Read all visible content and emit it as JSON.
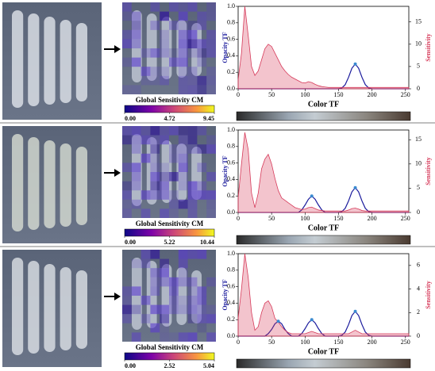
{
  "chart_data": [
    {
      "type": "line",
      "colorbar": {
        "title": "Global Sensitivity CM",
        "lim": [
          0,
          9.45
        ],
        "ticks": [
          {
            "value": 0,
            "label": "0.00"
          },
          4.72,
          9.45
        ]
      },
      "x_label": "Color TF",
      "y_label": "Opacity TF",
      "y2_label": "Sensitivity",
      "x": [
        0,
        5,
        10,
        15,
        20,
        25,
        30,
        35,
        40,
        45,
        50,
        55,
        60,
        65,
        70,
        75,
        80,
        85,
        90,
        95,
        100,
        105,
        110,
        115,
        120,
        125,
        130,
        135,
        140,
        145,
        150,
        155,
        160,
        165,
        170,
        175,
        180,
        185,
        190,
        195,
        200,
        205,
        210,
        215,
        220,
        225,
        230,
        235,
        240,
        245,
        250,
        255
      ],
      "xlim": [
        0,
        255
      ],
      "xticks": [
        0,
        50,
        100,
        150,
        200,
        250
      ],
      "ylim": [
        0,
        1
      ],
      "yticks": [
        {
          "value": 0,
          "label": "0.0"
        },
        0.2,
        0.4,
        0.6,
        0.8,
        {
          "value": 1,
          "label": "1.0"
        }
      ],
      "y2lim": [
        0,
        18.5
      ],
      "y2ticks": [
        0,
        5,
        10,
        15
      ],
      "series": [
        {
          "name": "Opacity TF",
          "color": "#1a1a9c",
          "values": [
            0,
            0,
            0,
            0,
            0,
            0,
            0,
            0,
            0,
            0,
            0,
            0,
            0,
            0,
            0,
            0,
            0,
            0,
            0,
            0,
            0,
            0,
            0,
            0,
            0,
            0,
            0,
            0,
            0,
            0,
            0,
            0.01,
            0.05,
            0.14,
            0.25,
            0.3,
            0.25,
            0.14,
            0.05,
            0.01,
            0,
            0,
            0,
            0,
            0,
            0,
            0,
            0,
            0,
            0,
            0,
            0
          ]
        },
        {
          "name": "Sensitivity",
          "color": "#d63a5a",
          "axis": "y2",
          "values": [
            2,
            8,
            18.5,
            12,
            5,
            3,
            4,
            6.5,
            9,
            10,
            9.5,
            8,
            6.5,
            5,
            4,
            3.2,
            2.6,
            2.2,
            1.8,
            1.4,
            1.3,
            1.6,
            1.4,
            1,
            0.7,
            0.5,
            0.4,
            0.3,
            0.3,
            0.3,
            0.3,
            0.3,
            0.3,
            0.3,
            0.3,
            0.3,
            0.3,
            0.3,
            0.3,
            0.3,
            0.3,
            0.3,
            0.3,
            0.3,
            0.3,
            0.3,
            0.3,
            0.3,
            0.3,
            0.3,
            0.3,
            0.3
          ]
        }
      ],
      "control_points": {
        "x": [
          175
        ],
        "values": [
          0.3
        ]
      }
    },
    {
      "type": "line",
      "colorbar": {
        "title": "Global Sensitivity CM",
        "lim": [
          0,
          10.44
        ],
        "ticks": [
          {
            "value": 0,
            "label": "0.00"
          },
          5.22,
          10.44
        ]
      },
      "x_label": "Color TF",
      "y_label": "Opacity TF",
      "y2_label": "Sensitivity",
      "x": [
        0,
        5,
        10,
        15,
        20,
        25,
        30,
        35,
        40,
        45,
        50,
        55,
        60,
        65,
        70,
        75,
        80,
        85,
        90,
        95,
        100,
        105,
        110,
        115,
        120,
        125,
        130,
        135,
        140,
        145,
        150,
        155,
        160,
        165,
        170,
        175,
        180,
        185,
        190,
        195,
        200,
        205,
        210,
        215,
        220,
        225,
        230,
        235,
        240,
        245,
        250,
        255
      ],
      "xlim": [
        0,
        255
      ],
      "xticks": [
        0,
        50,
        100,
        150,
        200,
        250
      ],
      "ylim": [
        0,
        1
      ],
      "yticks": [
        {
          "value": 0,
          "label": "0.0"
        },
        0.2,
        0.4,
        0.6,
        0.8,
        {
          "value": 1,
          "label": "1.0"
        }
      ],
      "y2lim": [
        0,
        17
      ],
      "y2ticks": [
        0,
        5,
        10,
        15
      ],
      "series": [
        {
          "name": "Opacity TF",
          "color": "#1a1a9c",
          "values": [
            0,
            0,
            0,
            0,
            0,
            0,
            0,
            0,
            0,
            0,
            0,
            0,
            0,
            0,
            0,
            0,
            0,
            0,
            0,
            0.03,
            0.09,
            0.16,
            0.2,
            0.16,
            0.09,
            0.03,
            0,
            0,
            0,
            0,
            0,
            0.01,
            0.05,
            0.14,
            0.25,
            0.3,
            0.25,
            0.14,
            0.05,
            0.01,
            0,
            0,
            0,
            0,
            0,
            0,
            0,
            0,
            0,
            0,
            0,
            0
          ]
        },
        {
          "name": "Sensitivity",
          "color": "#d63a5a",
          "axis": "y2",
          "values": [
            3,
            10,
            16.5,
            13,
            4,
            1,
            4,
            9,
            11,
            12,
            10,
            7,
            4.5,
            3,
            2.5,
            2,
            1.5,
            1,
            0.8,
            0.6,
            0.7,
            1,
            1.1,
            0.8,
            0.5,
            0.4,
            0.3,
            0.3,
            0.3,
            0.3,
            0.3,
            0.3,
            0.3,
            0.5,
            0.8,
            0.9,
            0.7,
            0.4,
            0.3,
            0.3,
            0.3,
            0.3,
            0.3,
            0.3,
            0.3,
            0.3,
            0.3,
            0.3,
            0.3,
            0.3,
            0.3,
            0.3
          ]
        }
      ],
      "control_points": {
        "x": [
          110,
          175
        ],
        "values": [
          0.2,
          0.3
        ]
      }
    },
    {
      "type": "line",
      "colorbar": {
        "title": "Global Sensitivity CM",
        "lim": [
          0,
          5.04
        ],
        "ticks": [
          {
            "value": 0,
            "label": "0.00"
          },
          2.52,
          5.04
        ]
      },
      "x_label": "Color TF",
      "y_label": "Opacity TF",
      "y2_label": "Sensitivity",
      "x": [
        0,
        5,
        10,
        15,
        20,
        25,
        30,
        35,
        40,
        45,
        50,
        55,
        60,
        65,
        70,
        75,
        80,
        85,
        90,
        95,
        100,
        105,
        110,
        115,
        120,
        125,
        130,
        135,
        140,
        145,
        150,
        155,
        160,
        165,
        170,
        175,
        180,
        185,
        190,
        195,
        200,
        205,
        210,
        215,
        220,
        225,
        230,
        235,
        240,
        245,
        250,
        255
      ],
      "xlim": [
        0,
        255
      ],
      "xticks": [
        0,
        50,
        100,
        150,
        200,
        250
      ],
      "ylim": [
        0,
        1
      ],
      "yticks": [
        {
          "value": 0,
          "label": "0.0"
        },
        0.2,
        0.4,
        0.6,
        0.8,
        {
          "value": 1,
          "label": "1.0"
        }
      ],
      "y2lim": [
        0,
        7
      ],
      "y2ticks": [
        0,
        2,
        4,
        6
      ],
      "series": [
        {
          "name": "Opacity TF",
          "color": "#1a1a9c",
          "values": [
            0,
            0,
            0,
            0,
            0,
            0,
            0,
            0,
            0,
            0.03,
            0.08,
            0.15,
            0.18,
            0.15,
            0.08,
            0.03,
            0,
            0,
            0,
            0.03,
            0.09,
            0.16,
            0.2,
            0.16,
            0.09,
            0.03,
            0,
            0,
            0,
            0,
            0,
            0.01,
            0.05,
            0.14,
            0.25,
            0.3,
            0.25,
            0.14,
            0.05,
            0.01,
            0,
            0,
            0,
            0,
            0,
            0,
            0,
            0,
            0,
            0,
            0,
            0
          ]
        },
        {
          "name": "Sensitivity",
          "color": "#d63a5a",
          "axis": "y2",
          "values": [
            1.5,
            4,
            7,
            5,
            2,
            0.5,
            0.8,
            2,
            2.8,
            3,
            2.5,
            1.5,
            1.2,
            0.8,
            0.5,
            0.3,
            0.2,
            0.2,
            0.2,
            0.2,
            0.2,
            0.3,
            0.4,
            0.3,
            0.2,
            0.2,
            0.2,
            0.2,
            0.2,
            0.2,
            0.2,
            0.2,
            0.2,
            0.2,
            0.35,
            0.5,
            0.35,
            0.2,
            0.2,
            0.2,
            0.2,
            0.2,
            0.2,
            0.2,
            0.2,
            0.2,
            0.2,
            0.2,
            0.2,
            0.2,
            0.2,
            0.2
          ]
        }
      ],
      "control_points": {
        "x": [
          60,
          110,
          175
        ],
        "values": [
          0.18,
          0.2,
          0.3
        ]
      }
    }
  ]
}
